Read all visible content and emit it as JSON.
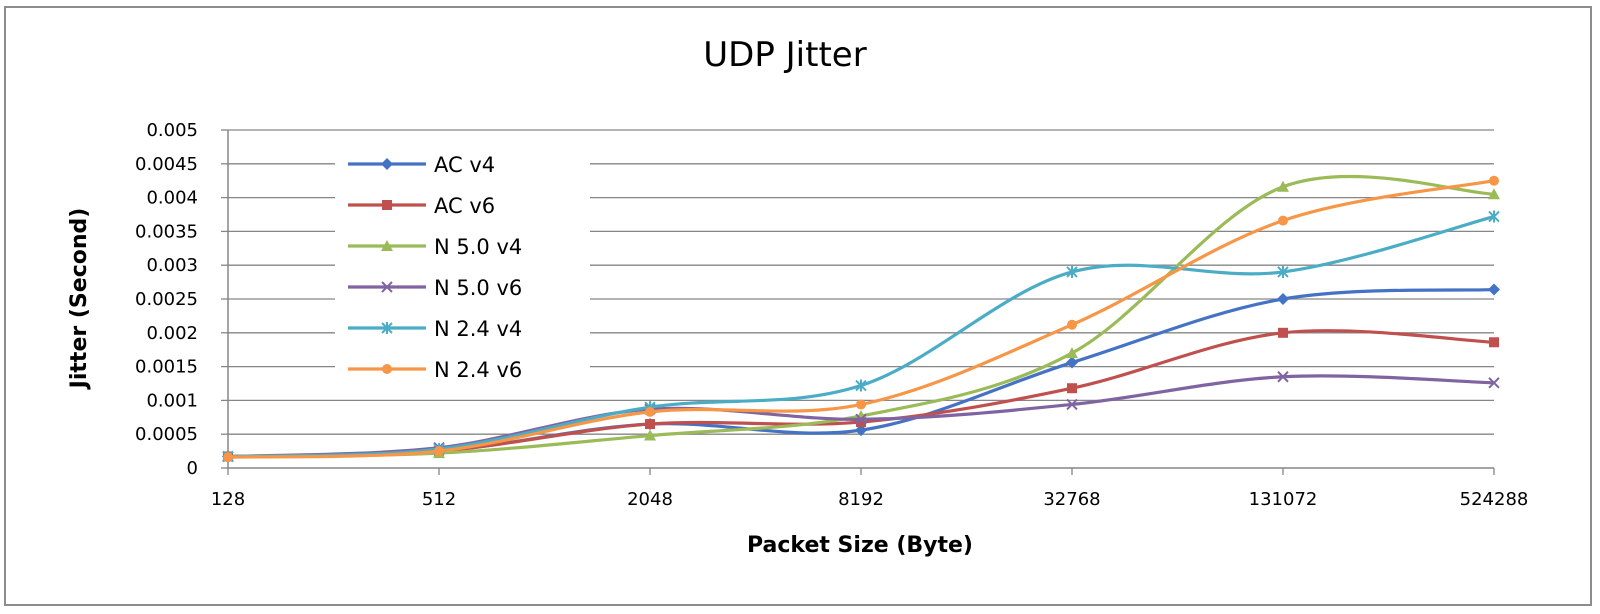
{
  "chart_data": {
    "type": "line",
    "title": "UDP Jitter",
    "xlabel": "Packet Size (Byte)",
    "ylabel": "Jitter (Second)",
    "categories": [
      "128",
      "512",
      "2048",
      "8192",
      "32768",
      "131072",
      "524288"
    ],
    "yticks": [
      "0",
      "0.0005",
      "0.001",
      "0.0015",
      "0.002",
      "0.0025",
      "0.003",
      "0.0035",
      "0.004",
      "0.0045",
      "0.005"
    ],
    "ylim": [
      0,
      0.005
    ],
    "grid": true,
    "smooth": true,
    "legend_position": "top-left inside plot",
    "series": [
      {
        "name": "AC v4",
        "color": "#4472c4",
        "marker": "diamond",
        "values": [
          0.00017,
          0.00025,
          0.00065,
          0.00056,
          0.00156,
          0.0025,
          0.00264
        ]
      },
      {
        "name": "AC v6",
        "color": "#c0504d",
        "marker": "square",
        "values": [
          0.00017,
          0.00025,
          0.00065,
          0.00068,
          0.00118,
          0.002,
          0.00186
        ]
      },
      {
        "name": "N 5.0 v4",
        "color": "#9bbb59",
        "marker": "triangle",
        "values": [
          0.00017,
          0.00022,
          0.00048,
          0.00077,
          0.0017,
          0.00416,
          0.00405
        ]
      },
      {
        "name": "N 5.0 v6",
        "color": "#8064a2",
        "marker": "x",
        "values": [
          0.00017,
          0.0003,
          0.00087,
          0.00072,
          0.00094,
          0.00135,
          0.00126
        ]
      },
      {
        "name": "N 2.4 v4",
        "color": "#4bacc6",
        "marker": "star",
        "values": [
          0.00017,
          0.00028,
          0.0009,
          0.00122,
          0.0029,
          0.0029,
          0.00372
        ]
      },
      {
        "name": "N 2.4 v6",
        "color": "#f79646",
        "marker": "circle",
        "values": [
          0.00016,
          0.00025,
          0.00083,
          0.00094,
          0.00212,
          0.00366,
          0.00425
        ]
      }
    ]
  }
}
